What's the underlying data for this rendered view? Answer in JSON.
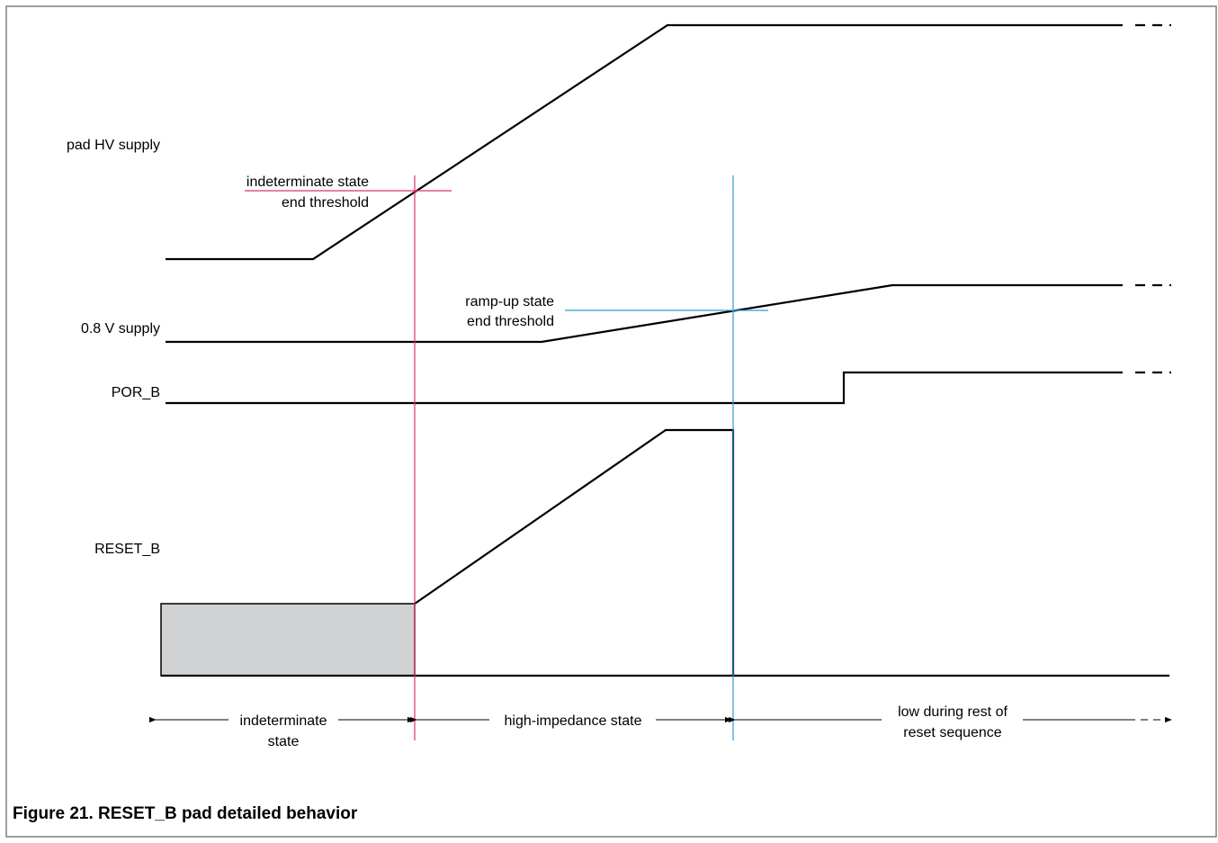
{
  "colors": {
    "signal": "#000000",
    "frame": "#7f7f7f",
    "indeterminate_marker": "#e2336b",
    "rampup_marker": "#2f9ecf",
    "indeterminate_fill": "#d1d2d4"
  },
  "signals": {
    "pad_hv_supply": "pad HV supply",
    "supply_0v8": "0.8 V supply",
    "por_b": "POR_B",
    "reset_b": "RESET_B"
  },
  "thresholds": {
    "indeterminate_line1": "indeterminate state",
    "indeterminate_line2": "end threshold",
    "rampup_line1": "ramp-up state",
    "rampup_line2": "end threshold"
  },
  "phases": {
    "indeterminate_line1": "indeterminate",
    "indeterminate_line2": "state",
    "high_impedance": "high-impedance state",
    "low_line1": "low during rest of",
    "low_line2": "reset sequence"
  },
  "caption": "Figure 21. RESET_B pad detailed behavior"
}
